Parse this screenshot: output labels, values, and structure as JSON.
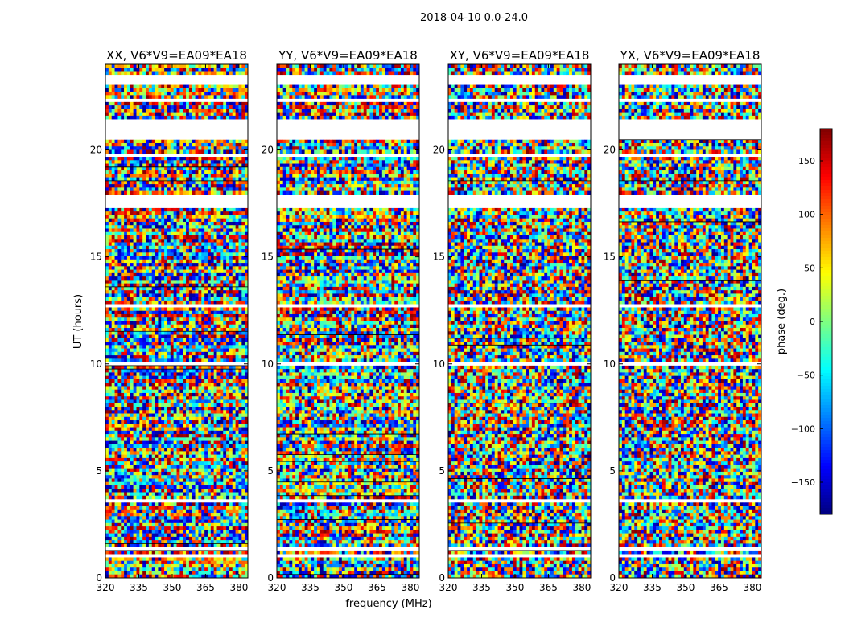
{
  "figure": {
    "suptitle": "2018-04-10 0.0-24.0",
    "xlabel": "frequency (MHz)",
    "ylabel": "UT (hours)",
    "colorbar_label": "phase (deg.)",
    "colorbar_ticks": [
      "150",
      "100",
      "50",
      "0",
      "−50",
      "−100",
      "−150"
    ],
    "x_ticks": [
      "320",
      "335",
      "350",
      "365",
      "380"
    ],
    "y_ticks": [
      "0",
      "5",
      "10",
      "15",
      "20"
    ]
  },
  "chart_data": {
    "type": "heatmap",
    "title": "2018-04-10 0.0-24.0",
    "xlabel": "frequency (MHz)",
    "ylabel": "UT (hours)",
    "xlim": [
      320,
      384
    ],
    "ylim": [
      0,
      24
    ],
    "x_ticks": [
      320,
      335,
      350,
      365,
      380
    ],
    "y_ticks": [
      0,
      5,
      10,
      15,
      20
    ],
    "color_scale": {
      "label": "phase (deg.)",
      "min": -180,
      "max": 180,
      "ticks": [
        150,
        100,
        50,
        0,
        -50,
        -100,
        -150
      ],
      "colormap": "jet"
    },
    "panels": [
      {
        "title": "XX, V6*V9=EA09*EA18",
        "pol": "XX",
        "coherent": true
      },
      {
        "title": "YY, V6*V9=EA09*EA18",
        "pol": "YY",
        "coherent": true
      },
      {
        "title": "XY, V6*V9=EA09*EA18",
        "pol": "XY",
        "coherent": false
      },
      {
        "title": "YX, V6*V9=EA09*EA18",
        "pol": "YX",
        "coherent": false
      }
    ],
    "flagged_ut_ranges_hours": [
      [
        0.95,
        1.08
      ],
      [
        1.3,
        1.4
      ],
      [
        3.6,
        3.72
      ],
      [
        8.75,
        8.85
      ],
      [
        9.05,
        9.15
      ],
      [
        10.0,
        10.08
      ],
      [
        11.02,
        11.12
      ],
      [
        12.65,
        12.75
      ],
      [
        16.6,
        16.7
      ],
      [
        17.3,
        17.95
      ],
      [
        19.75,
        19.85
      ],
      [
        20.55,
        21.5
      ],
      [
        22.28,
        22.36
      ],
      [
        23.05,
        23.5
      ]
    ]
  }
}
